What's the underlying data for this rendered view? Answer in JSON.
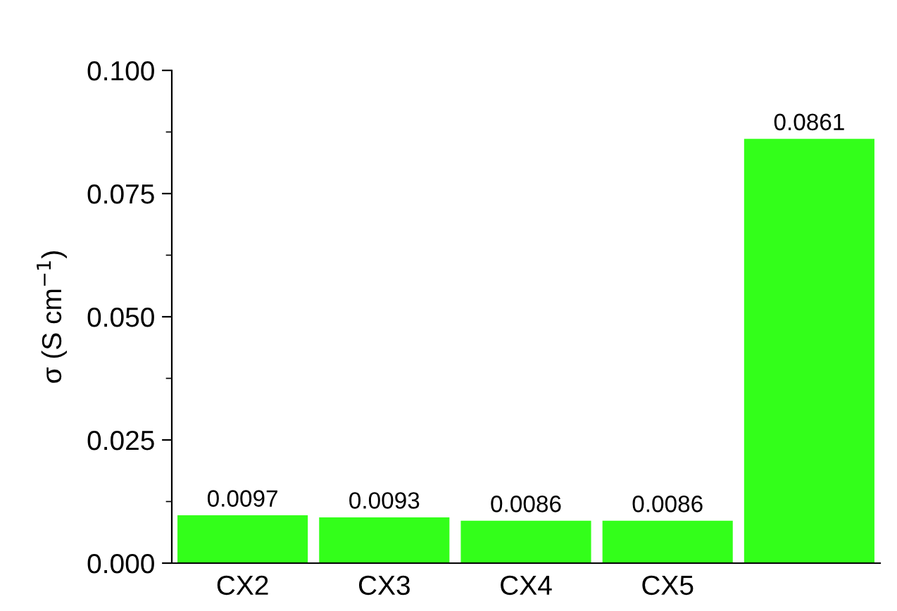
{
  "chart_data": {
    "type": "bar",
    "ylabel": "σ (S cm$^{−1}$)",
    "categories": [
      "CX2",
      "CX3",
      "CX4",
      "CX5",
      null
    ],
    "values": [
      0.0097,
      0.0093,
      0.0086,
      0.0086,
      0.0861
    ],
    "color": "#33ff1a",
    "ylim": [
      0,
      0.1
    ],
    "yticks": [
      {
        "value": 0,
        "label": "0.000"
      },
      {
        "value": 0.025,
        "label": "0.025"
      },
      {
        "value": 0.05,
        "label": "0.050"
      },
      {
        "value": 0.075,
        "label": "0.075"
      },
      {
        "value": 0.1,
        "label": "0.100"
      }
    ],
    "data_labels": true,
    "grid": false,
    "legend": false
  }
}
